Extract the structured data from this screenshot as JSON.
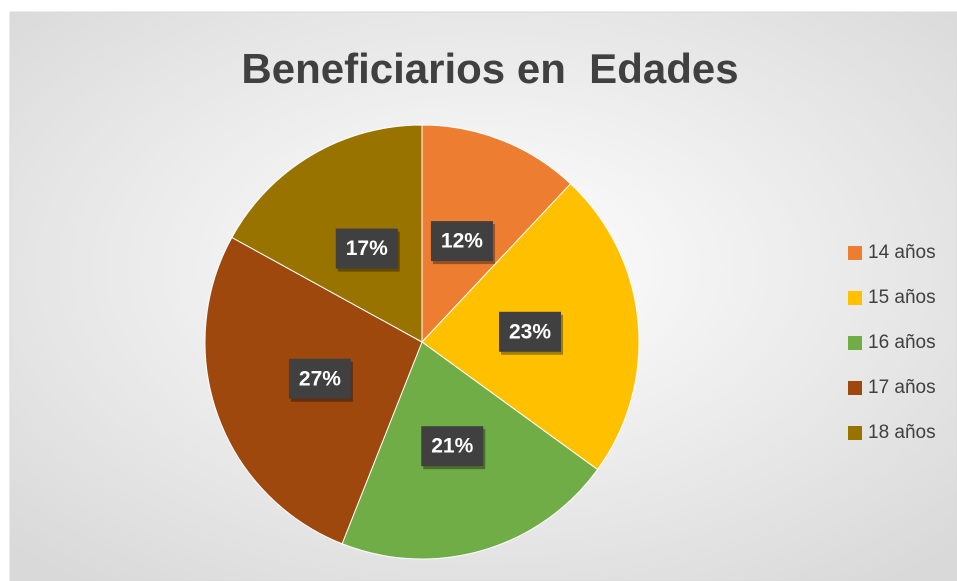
{
  "chart_data": {
    "type": "pie",
    "title": "Beneficiarios en  Edades",
    "categories": [
      "14 años",
      "15 años",
      "16 años",
      "17 años",
      "18 años"
    ],
    "values": [
      12,
      23,
      21,
      27,
      17
    ],
    "value_labels": [
      "12%",
      "23%",
      "21%",
      "27%",
      "17%"
    ],
    "colors": [
      "#ED7D31",
      "#FFC000",
      "#70AD47",
      "#9E480E",
      "#997300"
    ],
    "legend": "right"
  }
}
